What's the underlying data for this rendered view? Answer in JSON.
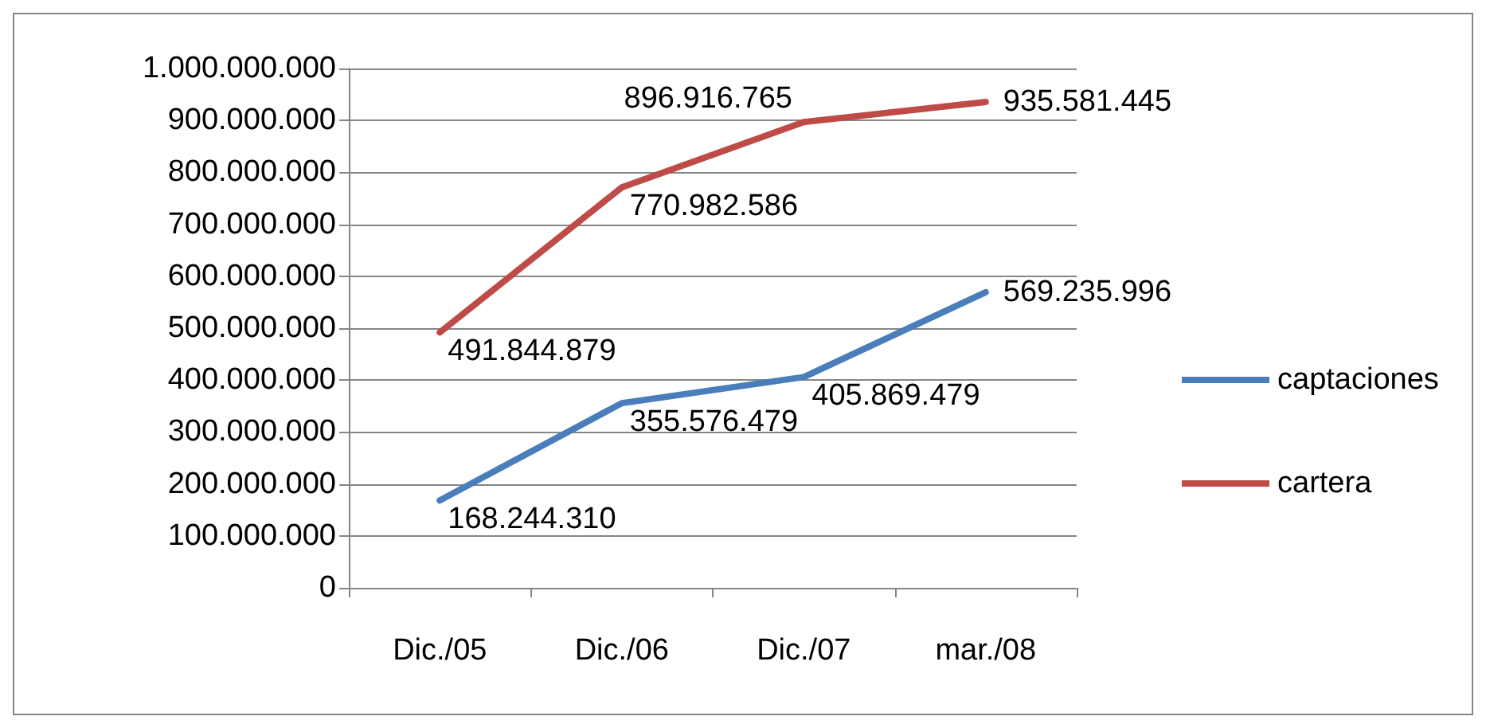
{
  "chart_data": {
    "type": "line",
    "categories": [
      "Dic./05",
      "Dic./06",
      "Dic./07",
      "mar./08"
    ],
    "series": [
      {
        "name": "captaciones",
        "color": "#4a7ebb",
        "values": [
          168244310,
          355576479,
          405869479,
          569235996
        ],
        "value_labels": [
          "168.244.310",
          "355.576.479",
          "405.869.479",
          "569.235.996"
        ]
      },
      {
        "name": "cartera",
        "color": "#be4b48",
        "values": [
          491844879,
          770982586,
          896916765,
          935581445
        ],
        "value_labels": [
          "491.844.879",
          "770.982.586",
          "896.916.765",
          "935.581.445"
        ]
      }
    ],
    "ylim": [
      0,
      1000000000
    ],
    "yticks": [
      {
        "value": 0,
        "label": "0"
      },
      {
        "value": 100000000,
        "label": "100.000.000"
      },
      {
        "value": 200000000,
        "label": "200.000.000"
      },
      {
        "value": 300000000,
        "label": "300.000.000"
      },
      {
        "value": 400000000,
        "label": "400.000.000"
      },
      {
        "value": 500000000,
        "label": "500.000.000"
      },
      {
        "value": 600000000,
        "label": "600.000.000"
      },
      {
        "value": 700000000,
        "label": "700.000.000"
      },
      {
        "value": 800000000,
        "label": "800.000.000"
      },
      {
        "value": 900000000,
        "label": "900.000.000"
      },
      {
        "value": 1000000000,
        "label": "1.000.000.000"
      }
    ],
    "grid": "y",
    "legend": "right",
    "marker": "none",
    "line_style": "solid"
  }
}
